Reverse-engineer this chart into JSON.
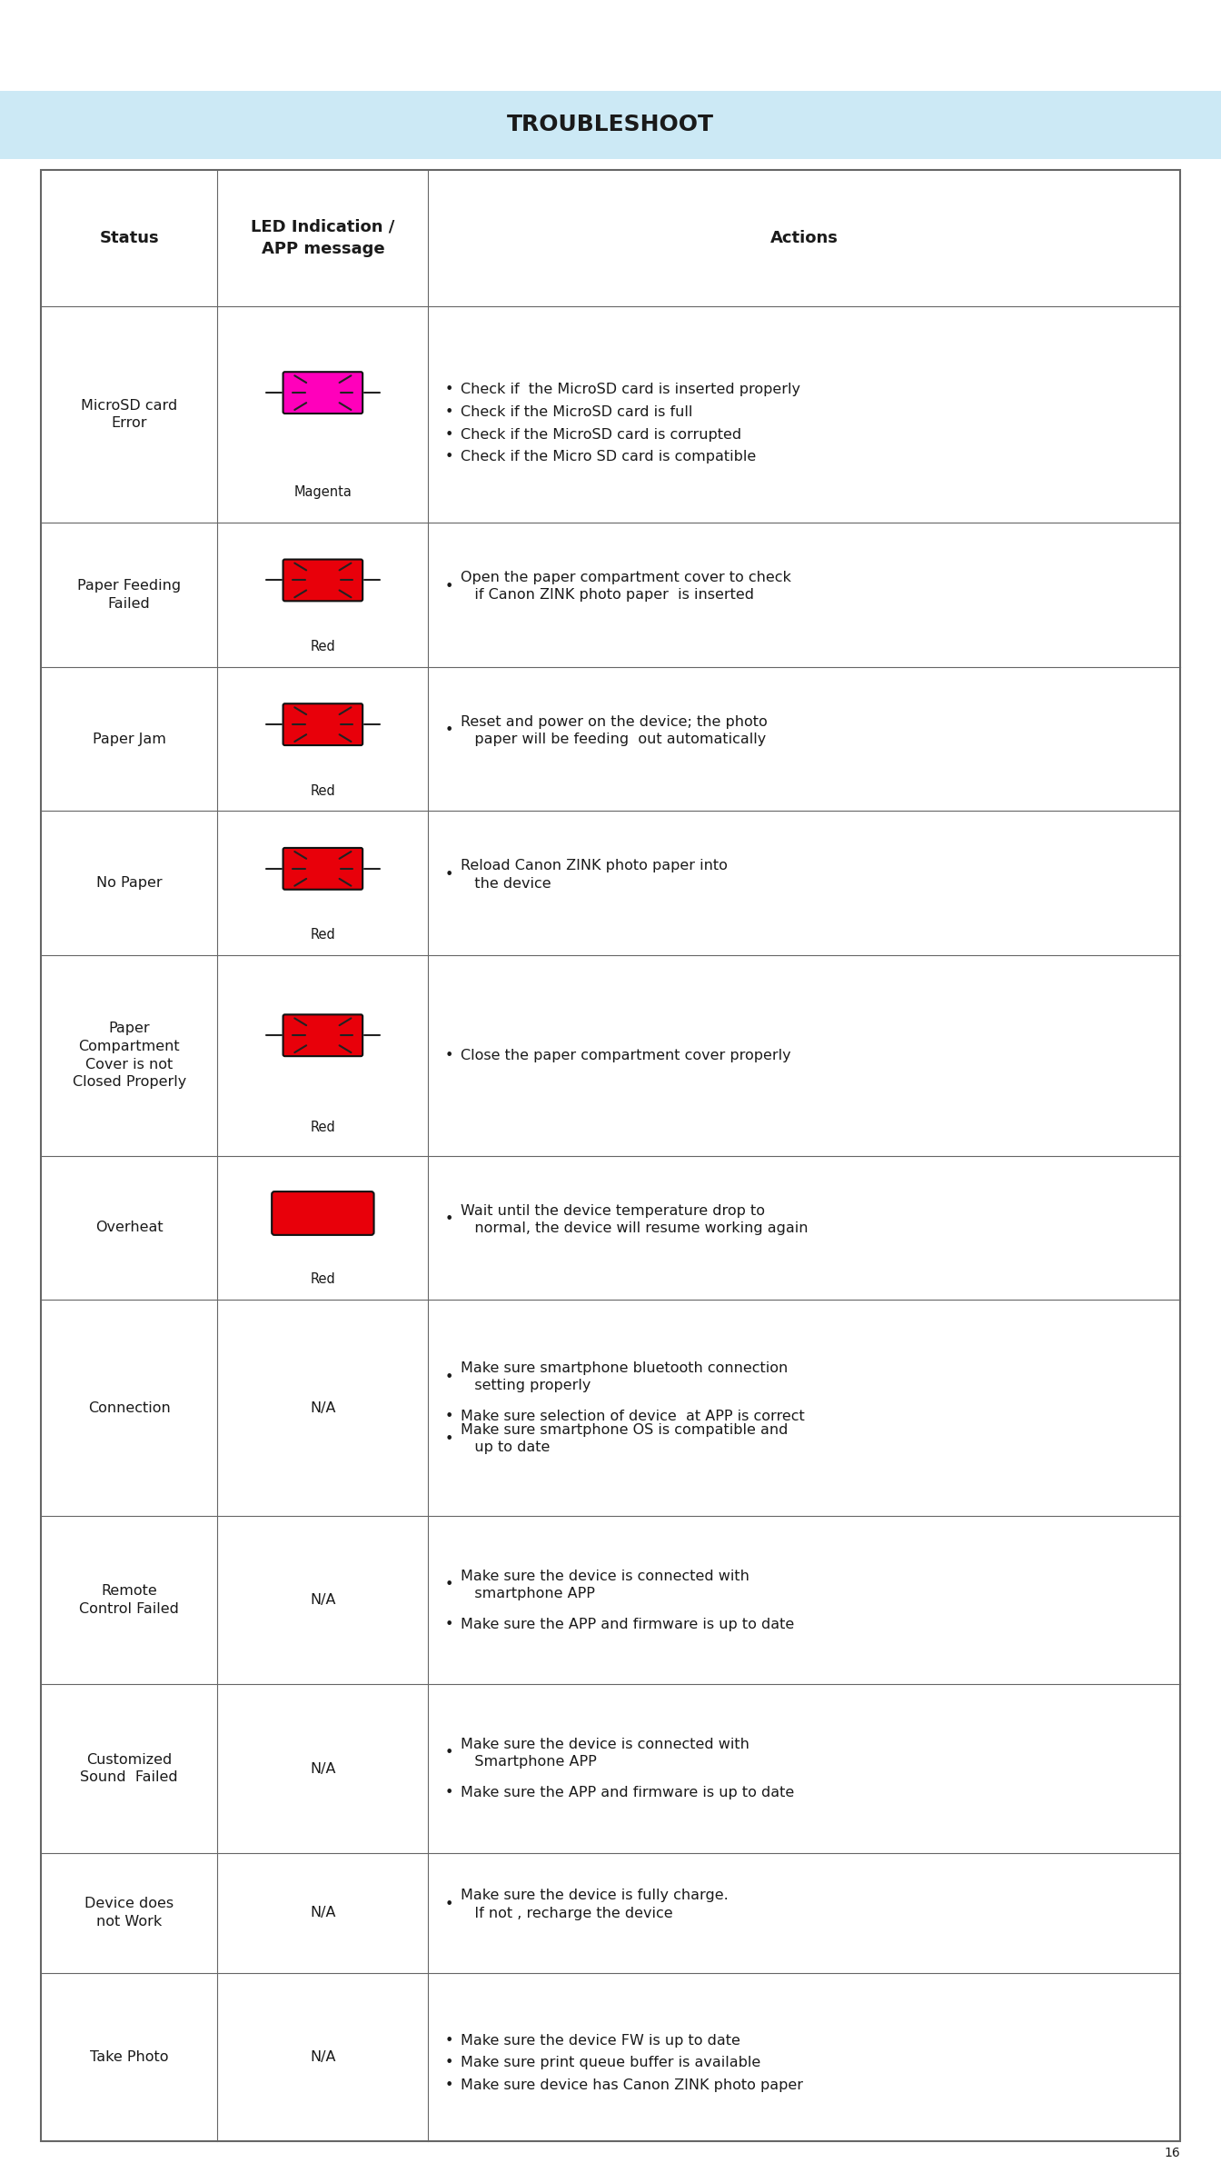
{
  "title": "TROUBLESHOOT",
  "title_bg": "#cce9f5",
  "page_bg": "#ffffff",
  "page_number": "16",
  "header": [
    "Status",
    "LED Indication /\nAPP message",
    "Actions"
  ],
  "rows": [
    {
      "status": "MicroSD card\nError",
      "led_color": "#FF00BB",
      "led_type": "flash",
      "led_label": "Magenta",
      "actions": [
        "Check if  the MicroSD card is inserted properly",
        "Check if the MicroSD card is full",
        "Check if the MicroSD card is corrupted",
        "Check if the Micro SD card is compatible"
      ]
    },
    {
      "status": "Paper Feeding\nFailed",
      "led_color": "#E8000A",
      "led_type": "flash",
      "led_label": "Red",
      "actions": [
        "Open the paper compartment cover to check\n   if Canon ZINK photo paper  is inserted"
      ]
    },
    {
      "status": "Paper Jam",
      "led_color": "#E8000A",
      "led_type": "flash",
      "led_label": "Red",
      "actions": [
        "Reset and power on the device; the photo\n   paper will be feeding  out automatically"
      ]
    },
    {
      "status": "No Paper",
      "led_color": "#E8000A",
      "led_type": "flash",
      "led_label": "Red",
      "actions": [
        "Reload Canon ZINK photo paper into\n   the device"
      ]
    },
    {
      "status": "Paper\nCompartment\nCover is not\nClosed Properly",
      "led_color": "#E8000A",
      "led_type": "flash",
      "led_label": "Red",
      "actions": [
        "Close the paper compartment cover properly"
      ]
    },
    {
      "status": "Overheat",
      "led_color": "#E8000A",
      "led_type": "solid",
      "led_label": "Red",
      "actions": [
        "Wait until the device temperature drop to\n   normal, the device will resume working again"
      ]
    },
    {
      "status": "Connection",
      "led_color": null,
      "led_type": "na",
      "led_label": "N/A",
      "actions": [
        "Make sure smartphone bluetooth connection\n   setting properly",
        "Make sure selection of device  at APP is correct",
        "Make sure smartphone OS is compatible and\n   up to date"
      ]
    },
    {
      "status": "Remote\nControl Failed",
      "led_color": null,
      "led_type": "na",
      "led_label": "N/A",
      "actions": [
        "Make sure the device is connected with\n   smartphone APP",
        "Make sure the APP and firmware is up to date"
      ]
    },
    {
      "status": "Customized\nSound  Failed",
      "led_color": null,
      "led_type": "na",
      "led_label": "N/A",
      "actions": [
        "Make sure the device is connected with\n   Smartphone APP",
        "Make sure the APP and firmware is up to date"
      ]
    },
    {
      "status": "Device does\nnot Work",
      "led_color": null,
      "led_type": "na",
      "led_label": "N/A",
      "actions": [
        "Make sure the device is fully charge.\n   If not , recharge the device"
      ]
    },
    {
      "status": "Take Photo",
      "led_color": null,
      "led_type": "na",
      "led_label": "N/A",
      "actions": [
        "Make sure the device FW is up to date",
        "Make sure print queue buffer is available",
        "Make sure device has Canon ZINK photo paper"
      ]
    }
  ],
  "text_color": "#1a1a1a",
  "border_color": "#666666",
  "font_size_header": 13,
  "font_size_body": 11.5
}
